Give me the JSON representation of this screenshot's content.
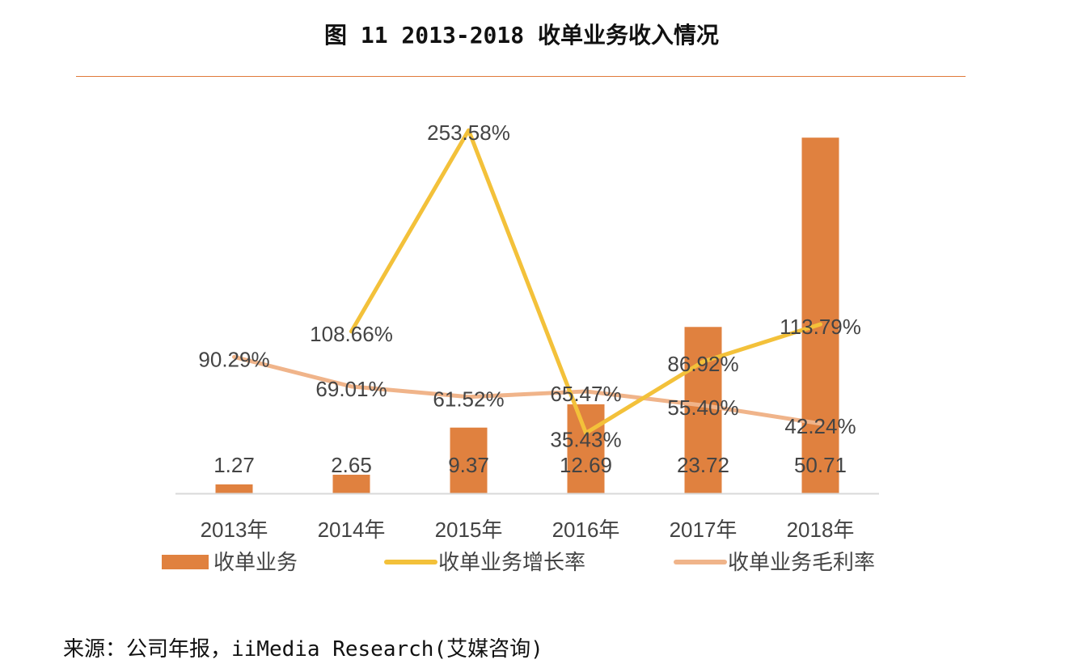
{
  "title": "图 11   2013-2018 收单业务收入情况",
  "source": "来源：公司年报，iiMedia Research(艾媒咨询)",
  "chart_data": {
    "type": "bar",
    "categories": [
      "2013年",
      "2014年",
      "2015年",
      "2016年",
      "2017年",
      "2018年"
    ],
    "ylim": [
      0,
      55
    ],
    "y2lim": [
      -8,
      270
    ],
    "grid": false,
    "legend_position": "bottom",
    "colors": {
      "bar": "#e0813f",
      "growth": "#f3c13a",
      "margin": "#f0b48a"
    },
    "series": [
      {
        "name": "收单业务",
        "type": "bar",
        "axis": "primary",
        "values": [
          1.27,
          2.65,
          9.37,
          12.69,
          23.72,
          50.71
        ],
        "labels": [
          "1.27",
          "2.65",
          "9.37",
          "12.69",
          "23.72",
          "50.71"
        ]
      },
      {
        "name": "收单业务增长率",
        "type": "line",
        "axis": "secondary",
        "values": [
          null,
          108.66,
          253.58,
          35.43,
          86.92,
          113.79
        ],
        "labels": [
          "",
          "108.66%",
          "253.58%",
          "35.43%",
          "86.92%",
          "113.79%"
        ]
      },
      {
        "name": "收单业务毛利率",
        "type": "line",
        "axis": "secondary",
        "values": [
          90.29,
          69.01,
          61.52,
          65.47,
          55.4,
          42.24
        ],
        "labels": [
          "90.29%",
          "69.01%",
          "61.52%",
          "65.47%",
          "55.40%",
          "42.24%"
        ]
      }
    ]
  }
}
